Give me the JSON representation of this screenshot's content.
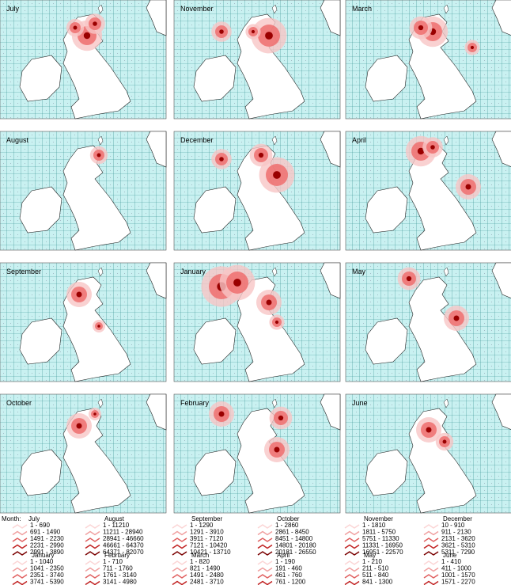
{
  "panels": [
    {
      "label": "July"
    },
    {
      "label": "November"
    },
    {
      "label": "March"
    },
    {
      "label": "August"
    },
    {
      "label": "December"
    },
    {
      "label": "April"
    },
    {
      "label": "September"
    },
    {
      "label": "January"
    },
    {
      "label": "May"
    },
    {
      "label": "October"
    },
    {
      "label": "February"
    },
    {
      "label": "June"
    }
  ],
  "legend": {
    "month_prefix": "Month:",
    "groups": [
      {
        "title": "July",
        "ranges": [
          "1 - 690",
          "691 - 1490",
          "1491 - 2230",
          "2231 - 2990",
          "2991 - 3890"
        ]
      },
      {
        "title": "August",
        "ranges": [
          "1 - 11210",
          "11211 - 28940",
          "28941 - 46660",
          "46661 - 64370",
          "64371 - 82070"
        ]
      },
      {
        "title": "September",
        "ranges": [
          "1 - 1290",
          "1291 - 3910",
          "3911 - 7120",
          "7121 - 10420",
          "10421 - 13710"
        ]
      },
      {
        "title": "October",
        "ranges": [
          "1 - 2860",
          "2861 - 8450",
          "8451 - 14800",
          "14801 - 20180",
          "20181 - 26550"
        ]
      },
      {
        "title": "November",
        "ranges": [
          "1 - 1810",
          "1811 - 5750",
          "5751 - 11330",
          "11331 - 16950",
          "16951 - 22570"
        ]
      },
      {
        "title": "December",
        "ranges": [
          "10 - 910",
          "911 - 2130",
          "2131 - 3620",
          "3621 - 5310",
          "5311 - 7290"
        ]
      },
      {
        "title": "January",
        "ranges": [
          "1 - 1040",
          "1041 - 2350",
          "2351 - 3740",
          "3741 - 5390"
        ]
      },
      {
        "title": "February",
        "ranges": [
          "1 - 710",
          "711 - 1760",
          "1761 - 3140",
          "3141 - 4980"
        ]
      },
      {
        "title": "March",
        "ranges": [
          "1 - 820",
          "821 - 1490",
          "1491 - 2480",
          "2481 - 3710"
        ]
      },
      {
        "title": "April",
        "ranges": [
          "1 - 190",
          "191 - 460",
          "461 - 760",
          "761 - 1200"
        ]
      },
      {
        "title": "May",
        "ranges": [
          "1 - 210",
          "211 - 510",
          "511 - 840",
          "841 - 1300"
        ]
      },
      {
        "title": "June",
        "ranges": [
          "1 - 410",
          "411 - 1000",
          "1001 - 1570",
          "1571 - 2270"
        ]
      }
    ]
  }
}
